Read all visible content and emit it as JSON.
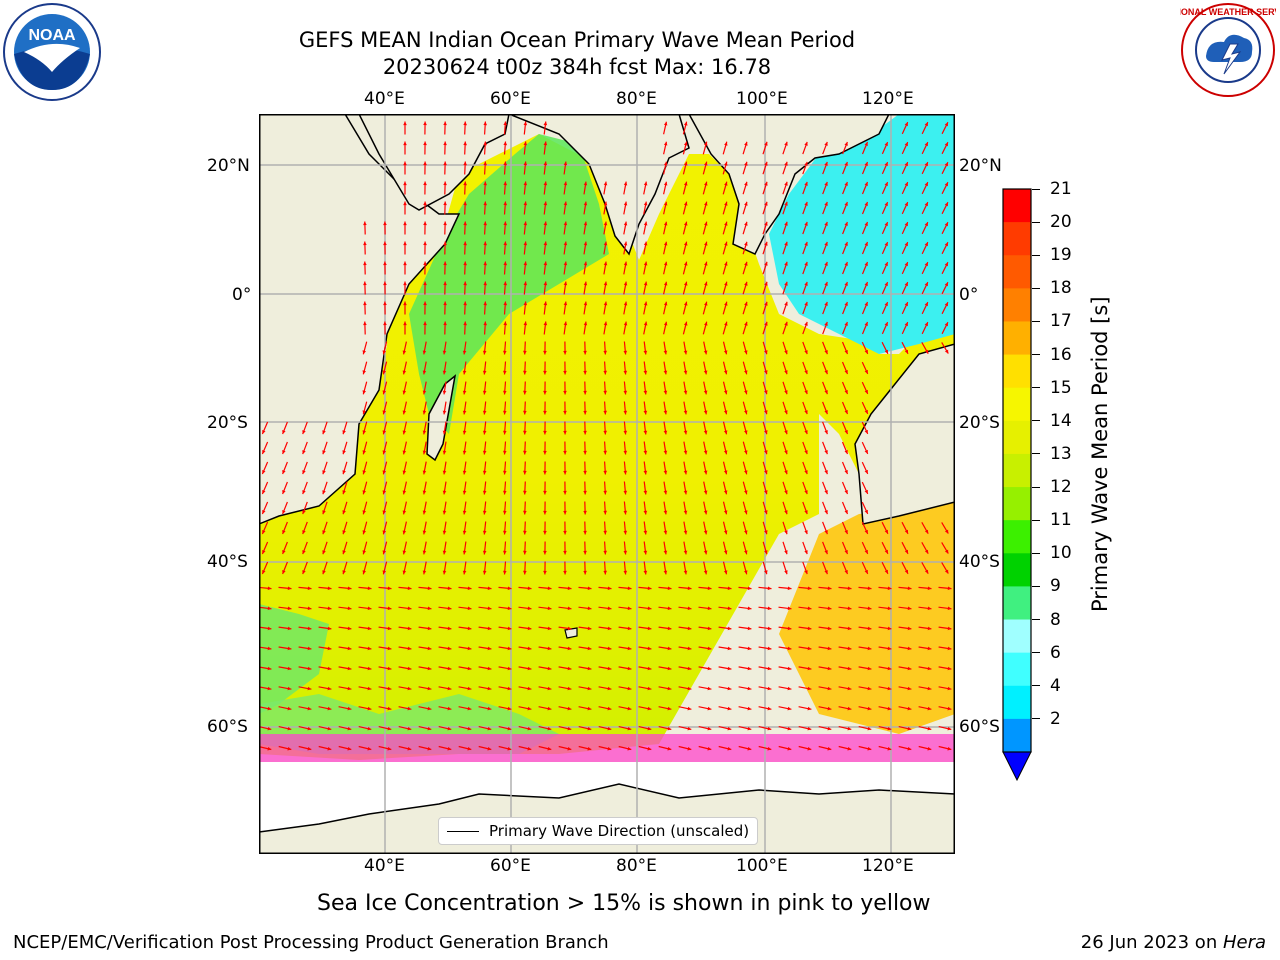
{
  "title": {
    "line1": "GEFS MEAN Indian Ocean Primary Wave Mean Period",
    "line2": "20230624 t00z 384h fcst   Max: 16.78"
  },
  "logos": {
    "left": "noaa-logo",
    "left_text": "NOAA",
    "right": "national-weather-service-logo",
    "right_text": "NATIONAL WEATHER SERVICE"
  },
  "map": {
    "lon_ticks": [
      "40°E",
      "60°E",
      "80°E",
      "100°E",
      "120°E"
    ],
    "lat_ticks_left": [
      "20°N",
      "0°",
      "20°S",
      "40°S",
      "60°S"
    ],
    "lat_ticks_right": [
      "20°N",
      "0°",
      "20°S",
      "40°S",
      "60°S"
    ],
    "colors": {
      "land": "#efeedc",
      "ice_open": "#ffffff",
      "arrow": "#ff0000",
      "grid": "#b0b0b0"
    },
    "legend_label": "Primary Wave Direction (unscaled)",
    "grid": true
  },
  "colorbar": {
    "label": "Primary Wave Mean Period [s]",
    "ticks": [
      "21",
      "20",
      "19",
      "18",
      "17",
      "16",
      "15",
      "14",
      "13",
      "12",
      "11",
      "10",
      "9",
      "8",
      "6",
      "4",
      "2"
    ],
    "colors_top_to_bottom": [
      "#ff0000",
      "#ff3b00",
      "#ff5a00",
      "#ff8000",
      "#ffb000",
      "#ffe000",
      "#f6f600",
      "#e6f000",
      "#c8f000",
      "#96f000",
      "#3cf000",
      "#00d200",
      "#40f080",
      "#a0ffff",
      "#40ffff",
      "#00f0ff",
      "#0096ff"
    ],
    "extend_color": "#0000ff"
  },
  "caption": "Sea Ice Concentration > 15% is shown in pink to yellow",
  "footer": {
    "left": "NCEP/EMC/Verification Post Processing Product Generation Branch",
    "date": "26 Jun 2023 on ",
    "machine": "Hera"
  }
}
